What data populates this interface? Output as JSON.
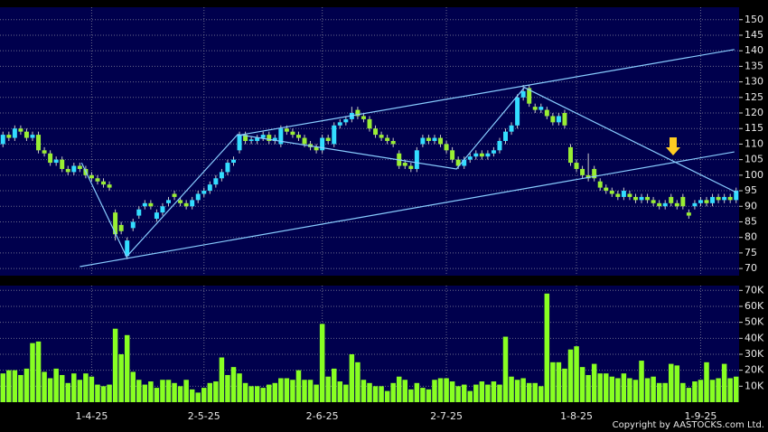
{
  "chart_data": {
    "type": "candlestick",
    "categories": [
      null,
      null,
      null,
      null,
      null,
      null,
      null,
      null,
      null,
      null,
      null,
      null,
      null,
      null,
      null,
      "1-4-25",
      null,
      null,
      null,
      null,
      null,
      null,
      null,
      null,
      null,
      null,
      null,
      null,
      null,
      null,
      null,
      null,
      null,
      null,
      "2-5-25",
      null,
      null,
      null,
      null,
      null,
      null,
      null,
      null,
      null,
      null,
      null,
      null,
      null,
      null,
      null,
      null,
      null,
      null,
      null,
      "2-6-25",
      null,
      null,
      null,
      null,
      null,
      null,
      null,
      null,
      null,
      null,
      null,
      null,
      null,
      null,
      null,
      null,
      null,
      null,
      null,
      null,
      "2-7-25",
      null,
      null,
      null,
      null,
      null,
      null,
      null,
      null,
      null,
      null,
      null,
      null,
      null,
      null,
      null,
      null,
      null,
      null,
      null,
      null,
      null,
      "1-8-25",
      null,
      null,
      null,
      null,
      null,
      null,
      null,
      null,
      null,
      null,
      null,
      null,
      null,
      null,
      null,
      null,
      null,
      null,
      null,
      null,
      "1-9-25",
      null,
      null,
      null,
      null,
      null,
      null
    ],
    "open": [
      110,
      113,
      112,
      115,
      114,
      112,
      113,
      108,
      107,
      104,
      105,
      102,
      101,
      103,
      102,
      100,
      99,
      98,
      97,
      88,
      84,
      74,
      83,
      87,
      90,
      91,
      86,
      88,
      91,
      94,
      92,
      91,
      90,
      92,
      94,
      95,
      97,
      99,
      101,
      104,
      108,
      113,
      111,
      111,
      112,
      113,
      111,
      110,
      115,
      114,
      113,
      112,
      110,
      109,
      108,
      112,
      110,
      116,
      117,
      118,
      121,
      119,
      118,
      115,
      113,
      112,
      111,
      107,
      104,
      103,
      102,
      110,
      112,
      111,
      112,
      110,
      108,
      105,
      103,
      105,
      106,
      107,
      106,
      107,
      108,
      111,
      114,
      116,
      125,
      128,
      122,
      121,
      121,
      119,
      117,
      120,
      109,
      104,
      102,
      100,
      102,
      98,
      96,
      95,
      94,
      93,
      94,
      93,
      92,
      93,
      92,
      91,
      90,
      93,
      91,
      93,
      88,
      90,
      91,
      92,
      91,
      93,
      92,
      93,
      92
    ],
    "high": [
      114,
      114,
      116,
      116,
      115,
      114,
      114,
      109,
      108,
      106,
      106,
      103,
      104,
      104,
      103,
      101,
      100,
      99,
      98,
      89,
      85,
      80,
      86,
      90,
      92,
      92,
      89,
      91,
      93,
      95,
      93,
      92,
      93,
      95,
      96,
      98,
      100,
      102,
      105,
      106,
      114,
      114,
      112.5,
      113,
      114,
      114,
      113,
      116,
      116,
      115,
      114,
      113,
      111,
      110,
      113,
      113,
      117,
      118,
      119,
      122,
      122,
      120,
      119,
      116,
      114,
      113,
      112,
      108,
      105,
      104,
      109,
      113,
      113,
      113,
      113,
      111,
      109,
      106,
      106,
      107,
      108,
      108,
      108,
      109,
      112,
      115,
      117,
      126,
      129,
      129,
      123,
      123,
      122,
      120,
      120,
      121,
      110,
      105,
      103,
      107,
      103,
      99,
      97,
      96,
      95,
      96,
      95,
      94,
      94,
      94,
      93,
      92,
      92,
      94,
      92,
      94,
      89,
      92,
      93,
      93,
      94,
      94,
      94,
      94,
      96
    ],
    "low": [
      109,
      111,
      111,
      113,
      111,
      111,
      107,
      106,
      103,
      103,
      101,
      100,
      100,
      101,
      99,
      98,
      97,
      96,
      95,
      79,
      81,
      73,
      82,
      86,
      89,
      89,
      85,
      87,
      90,
      92,
      90,
      89,
      89,
      91,
      93,
      94,
      96,
      98,
      100,
      103,
      107,
      110,
      110,
      110,
      111,
      110,
      110,
      109,
      113,
      112,
      111,
      109,
      108,
      107,
      107,
      110,
      109,
      115,
      116,
      117,
      118,
      117,
      114,
      112,
      111,
      110,
      109,
      102,
      102,
      101,
      101,
      109,
      110,
      110,
      109,
      107,
      104,
      102,
      102,
      104,
      105,
      105,
      105,
      106,
      107,
      110,
      113,
      115,
      124,
      122,
      120,
      120,
      118,
      116,
      116,
      115,
      103,
      101,
      99,
      98,
      98,
      95,
      94,
      93,
      92,
      92,
      92,
      91,
      91,
      91,
      90,
      89,
      89,
      90,
      89,
      89,
      86,
      89,
      90,
      90,
      90,
      91,
      91,
      91,
      91
    ],
    "close": [
      113,
      112,
      115,
      114,
      112,
      113,
      108,
      107,
      104,
      105,
      102,
      101,
      103,
      102,
      100,
      99,
      98,
      97,
      96,
      81,
      82,
      79,
      85,
      89,
      91,
      90,
      88,
      90,
      92,
      93,
      91,
      90,
      92,
      94,
      95,
      97,
      99,
      101,
      104,
      105,
      113,
      111,
      111.5,
      112,
      113,
      111,
      112,
      115,
      114,
      113,
      112,
      110,
      109,
      108,
      112,
      111,
      116,
      117,
      118,
      120,
      119,
      118,
      115,
      113,
      112,
      111,
      110,
      103,
      103,
      102,
      108,
      112,
      111,
      112,
      110,
      108,
      105,
      103,
      105,
      106,
      107,
      106,
      107,
      108,
      111,
      114,
      116,
      125,
      127,
      123,
      121,
      122,
      119,
      117,
      119,
      116,
      104,
      102,
      100,
      99,
      99,
      96,
      95,
      94,
      93,
      95,
      93,
      92,
      93,
      92,
      91,
      90,
      91,
      91,
      90,
      90,
      87,
      91,
      92,
      91,
      93,
      92,
      93,
      92,
      95
    ],
    "volume": [
      18000,
      20000,
      20000,
      17000,
      21000,
      37000,
      38000,
      19000,
      15000,
      21000,
      17000,
      12000,
      18000,
      14000,
      18000,
      16000,
      11000,
      10000,
      11000,
      46000,
      30000,
      42000,
      19000,
      14000,
      11000,
      13000,
      9000,
      14000,
      14000,
      12000,
      10000,
      14000,
      8000,
      6000,
      9000,
      12000,
      13000,
      28000,
      17000,
      22000,
      18000,
      12000,
      10000,
      10000,
      9000,
      11000,
      12000,
      15000,
      15000,
      14000,
      20000,
      14000,
      14000,
      11000,
      49000,
      16000,
      21000,
      13000,
      11000,
      30000,
      25000,
      14000,
      12000,
      10000,
      10000,
      7000,
      12000,
      16000,
      14000,
      8000,
      12000,
      9000,
      8000,
      14000,
      15000,
      15000,
      13000,
      10000,
      11000,
      7000,
      11000,
      13000,
      11000,
      13000,
      11000,
      41000,
      16000,
      14000,
      15000,
      12000,
      12000,
      10000,
      68000,
      25000,
      25000,
      21000,
      33000,
      35000,
      22000,
      17000,
      24000,
      18000,
      18000,
      16000,
      15000,
      18000,
      15000,
      14000,
      26000,
      15000,
      16000,
      12000,
      12000,
      24000,
      23000,
      12000,
      9000,
      13000,
      14000,
      25000,
      14000,
      15000,
      24000,
      15000,
      16000
    ],
    "up_color": "#33ddff",
    "down_color": "#99ee33",
    "volume_color": "#88ff22",
    "ylim": [
      67.7,
      154
    ],
    "yticks": [
      70,
      75,
      80,
      85,
      90,
      95,
      100,
      105,
      110,
      115,
      120,
      125,
      130,
      135,
      140,
      145,
      150
    ],
    "volume_ylim": [
      0,
      73000
    ],
    "volume_yticks": [
      {
        "value": 10000,
        "label": "10K"
      },
      {
        "value": 20000,
        "label": "20K"
      },
      {
        "value": 30000,
        "label": "30K"
      },
      {
        "value": 40000,
        "label": "40K"
      },
      {
        "value": 50000,
        "label": "50K"
      },
      {
        "value": 60000,
        "label": "60K"
      },
      {
        "value": 70000,
        "label": "70K"
      }
    ],
    "trendline_color": "#88ccff",
    "trendlines": [
      {
        "x": [
          13.3,
          20.9,
          39.7,
          76.7,
          88.2,
          124.1
        ],
        "y": [
          104,
          73.8,
          113.1,
          102,
          128.2,
          94.4
        ]
      },
      {
        "x": [
          13,
          123.7
        ],
        "y": [
          70.6,
          107.5
        ]
      },
      {
        "x": [
          39.7,
          123.7
        ],
        "y": [
          112.8,
          140.4
        ]
      }
    ],
    "grid": true,
    "copyright": "Copyright by AASTOCKS.com Ltd."
  }
}
